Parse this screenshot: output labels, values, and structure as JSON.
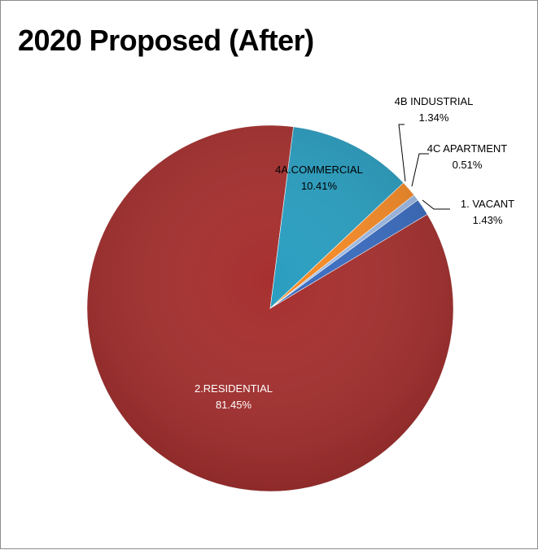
{
  "chart_data": {
    "type": "pie",
    "title": "2020 Proposed (After)",
    "slices": [
      {
        "label": "1. VACANT",
        "value": 1.43,
        "value_label": "1.43%",
        "color": "#3a6cc0",
        "label_text_color": "#000000"
      },
      {
        "label": "2.RESIDENTIAL",
        "value": 81.45,
        "value_label": "81.45%",
        "color": "#a6302f",
        "label_text_color": "#ffffff"
      },
      {
        "label": "4A.COMMERCIAL",
        "value": 10.41,
        "value_label": "10.41%",
        "color": "#2a9ec0",
        "label_text_color": "#000000"
      },
      {
        "label": "4B INDUSTRIAL",
        "value": 1.34,
        "value_label": "1.34%",
        "color": "#f58a26",
        "label_text_color": "#000000"
      },
      {
        "label": "4C APARTMENT",
        "value": 0.51,
        "value_label": "0.51%",
        "color": "#9ebbe6",
        "label_text_color": "#000000"
      }
    ],
    "label_position": "callouts for small slices, inside for large slices",
    "legend": "none"
  }
}
